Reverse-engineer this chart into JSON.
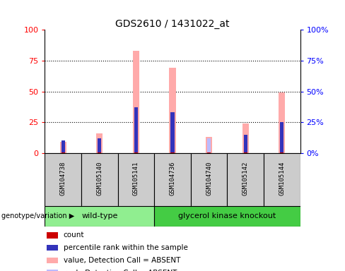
{
  "title": "GDS2610 / 1431022_at",
  "samples": [
    "GSM104738",
    "GSM105140",
    "GSM105141",
    "GSM104736",
    "GSM104740",
    "GSM105142",
    "GSM105144"
  ],
  "wild_type_count": 3,
  "knockout_count": 4,
  "rank_values": [
    10,
    12,
    37,
    33,
    0,
    15,
    25
  ],
  "absent_value_values": [
    9,
    16,
    83,
    69,
    13,
    24,
    49
  ],
  "absent_rank_values": [
    9,
    12,
    37,
    33,
    12,
    15,
    25
  ],
  "ylim": [
    0,
    100
  ],
  "yticks": [
    0,
    25,
    50,
    75,
    100
  ],
  "bar_color_count": "#cc0000",
  "bar_color_rank": "#3333bb",
  "bar_color_absent_value": "#ffaaaa",
  "bar_color_absent_rank": "#bbbbff",
  "group_color_wt": "#90EE90",
  "group_color_ko": "#44cc44",
  "sample_box_color": "#cccccc",
  "legend_items": [
    {
      "label": "count",
      "color": "#cc0000"
    },
    {
      "label": "percentile rank within the sample",
      "color": "#3333bb"
    },
    {
      "label": "value, Detection Call = ABSENT",
      "color": "#ffaaaa"
    },
    {
      "label": "rank, Detection Call = ABSENT",
      "color": "#bbbbff"
    }
  ],
  "wt_label": "wild-type",
  "ko_label": "glycerol kinase knockout",
  "genotype_label": "genotype/variation"
}
